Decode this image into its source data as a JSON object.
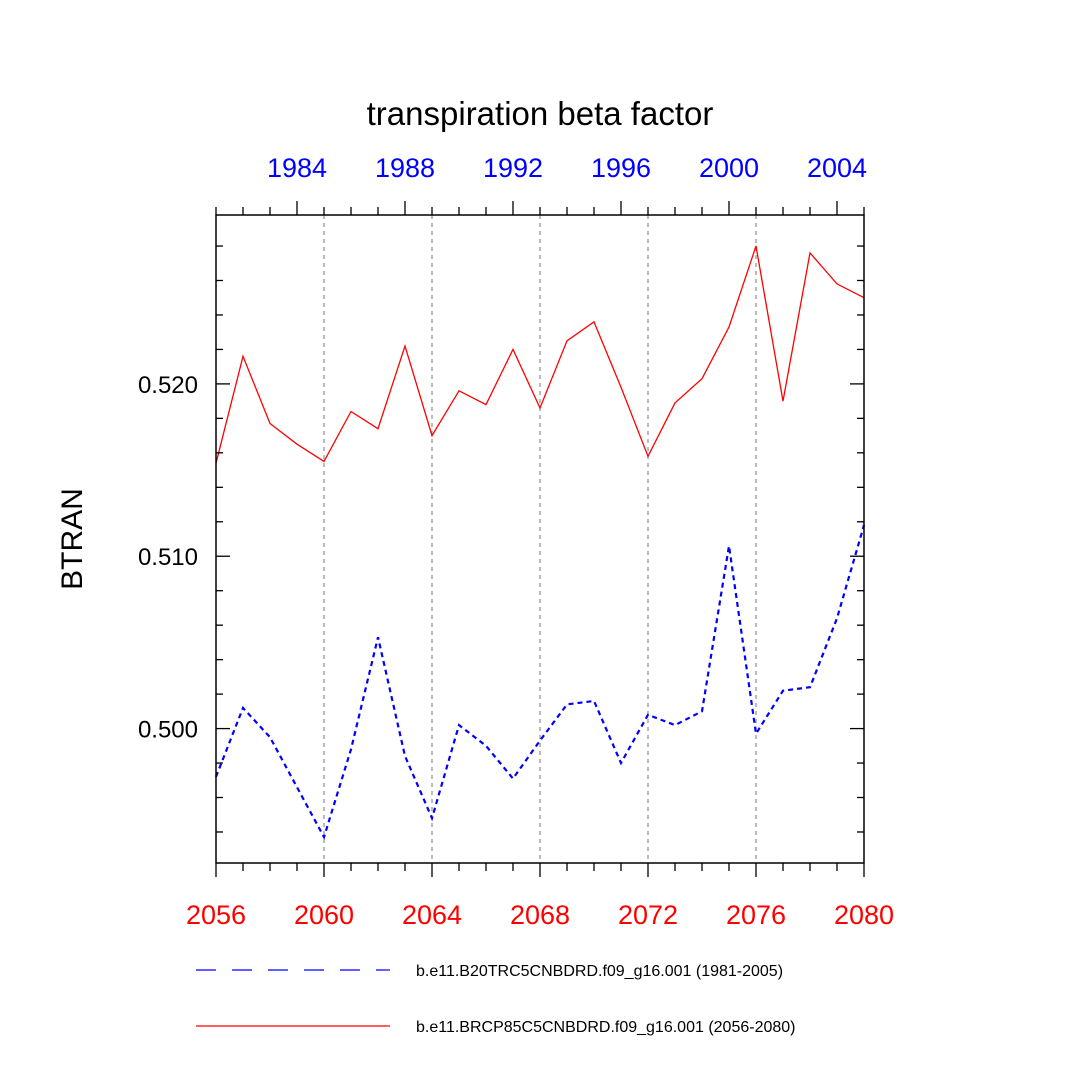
{
  "chart_data": {
    "type": "line",
    "title": "transpiration beta factor",
    "ylabel": "BTRAN",
    "xlabel": "",
    "ylim": [
      0.4922,
      0.5298
    ],
    "yticks": [
      0.5,
      0.51,
      0.52
    ],
    "ytick_labels": [
      "0.500",
      "0.510",
      "0.520"
    ],
    "bottom_axis": {
      "color": "#ff0000",
      "range": [
        2056,
        2080
      ],
      "ticks": [
        2056,
        2060,
        2064,
        2068,
        2072,
        2076,
        2080
      ],
      "tick_labels": [
        "2056",
        "2060",
        "2064",
        "2068",
        "2072",
        "2076",
        "2080"
      ]
    },
    "top_axis": {
      "color": "#0000ff",
      "range": [
        1981,
        2005
      ],
      "ticks": [
        1984,
        1988,
        1992,
        1996,
        2000,
        2004
      ],
      "tick_labels": [
        "1984",
        "1988",
        "1992",
        "1996",
        "2000",
        "2004"
      ]
    },
    "gridlines_x": [
      2060,
      2064,
      2068,
      2072,
      2076
    ],
    "x": [
      2056,
      2057,
      2058,
      2059,
      2060,
      2061,
      2062,
      2063,
      2064,
      2065,
      2066,
      2067,
      2068,
      2069,
      2070,
      2071,
      2072,
      2073,
      2074,
      2075,
      2076,
      2077,
      2078,
      2079,
      2080
    ],
    "series": [
      {
        "name": "b.e11.B20TRC5CNBDRD.f09_g16.001 (1981-2005)",
        "color": "#0000ff",
        "style": "dashed",
        "values": [
          0.4972,
          0.5012,
          0.4995,
          0.4966,
          0.4937,
          0.4988,
          0.5053,
          0.4984,
          0.4948,
          0.5002,
          0.499,
          0.4971,
          0.4993,
          0.5014,
          0.5016,
          0.498,
          0.5008,
          0.5002,
          0.501,
          0.5106,
          0.4997,
          0.5022,
          0.5024,
          0.5064,
          0.5118
        ]
      },
      {
        "name": "b.e11.BRCP85C5CNBDRD.f09_g16.001 (2056-2080)",
        "color": "#ff0000",
        "style": "solid",
        "values": [
          0.5154,
          0.5216,
          0.5177,
          0.5165,
          0.5155,
          0.5184,
          0.5174,
          0.5222,
          0.517,
          0.5196,
          0.5188,
          0.522,
          0.5186,
          0.5225,
          0.5236,
          0.5198,
          0.5158,
          0.5189,
          0.5203,
          0.5233,
          0.528,
          0.519,
          0.5276,
          0.5258,
          0.525
        ]
      }
    ],
    "legend_position": "bottom"
  }
}
